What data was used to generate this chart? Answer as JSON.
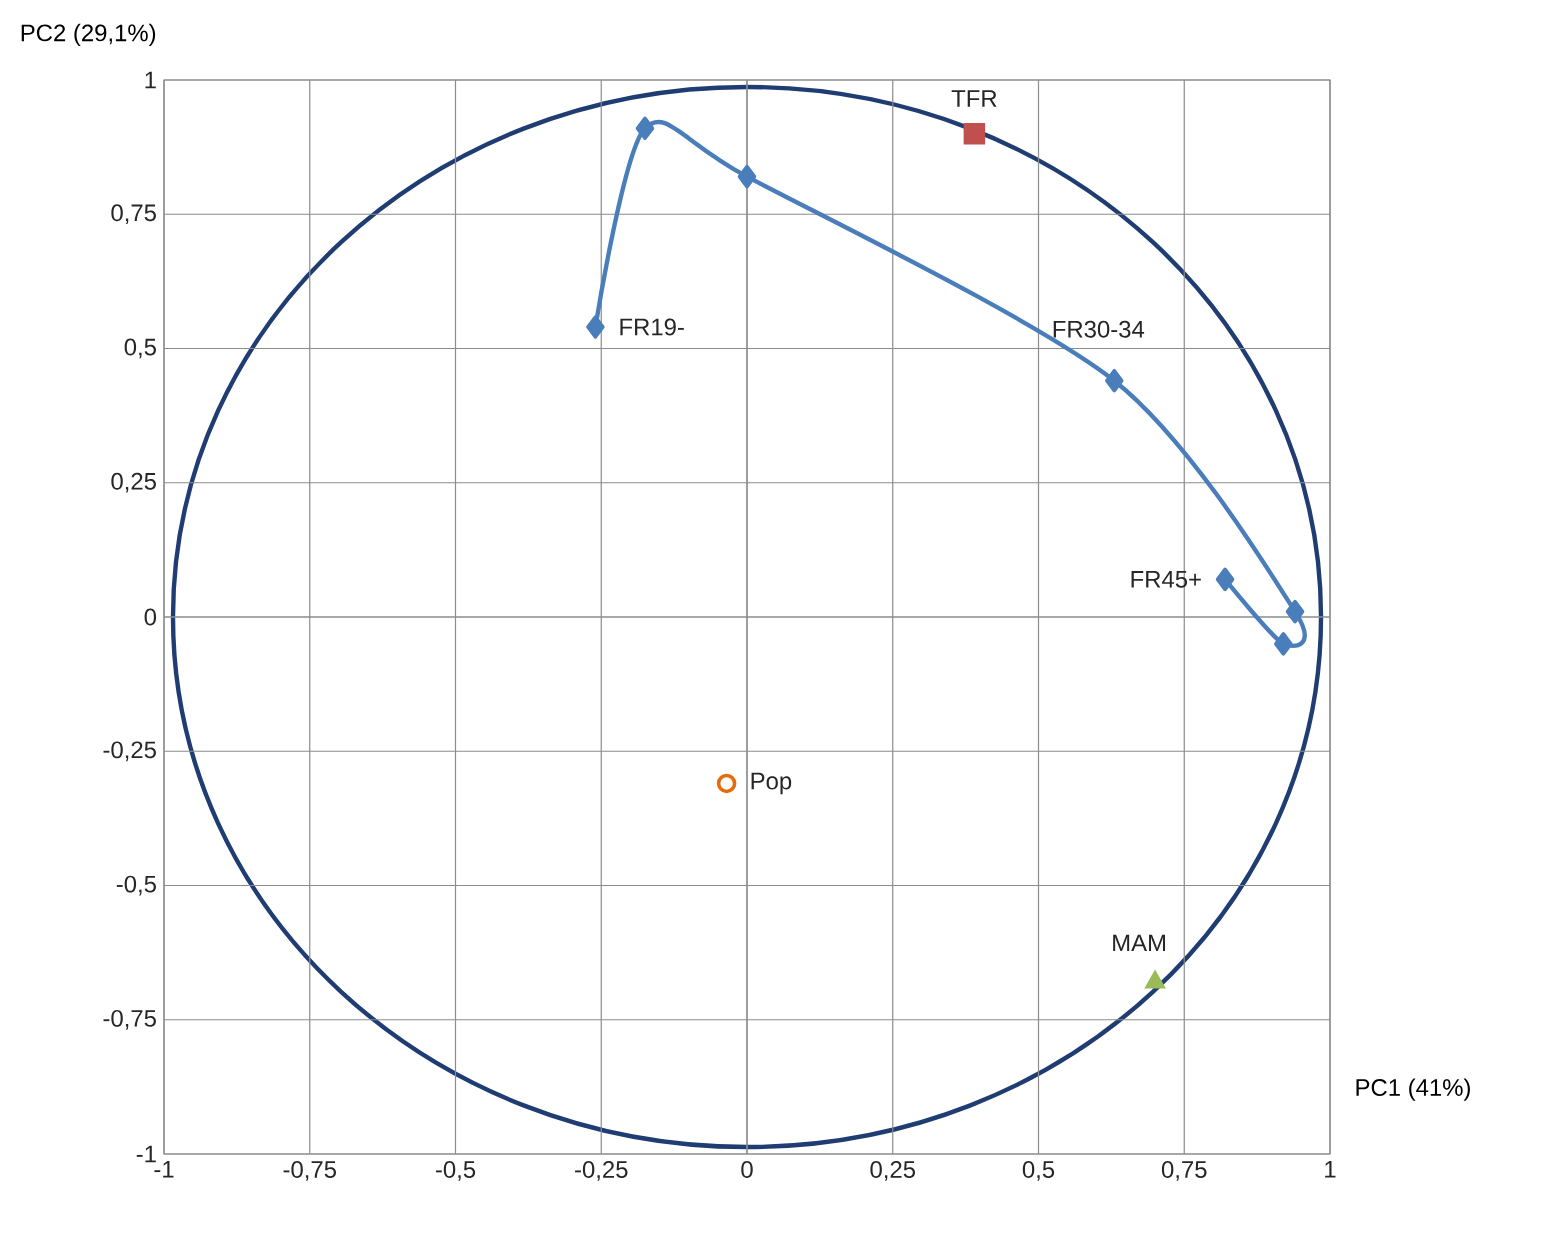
{
  "chart_data": {
    "type": "scatter",
    "xlabel": "PC1 (41%)",
    "ylabel": "PC2 (29,1%)",
    "xlim": [
      -1,
      1
    ],
    "ylim": [
      -1,
      1
    ],
    "xticks": [
      -1,
      {
        "value": -0.75,
        "label": "-0,75"
      },
      {
        "value": -0.5,
        "label": "-0,5"
      },
      {
        "value": -0.25,
        "label": "-0,25"
      },
      0,
      {
        "value": 0.25,
        "label": "0,25"
      },
      {
        "value": 0.5,
        "label": "0,5"
      },
      {
        "value": 0.75,
        "label": "0,75"
      },
      1
    ],
    "yticks": [
      -1,
      {
        "value": -0.75,
        "label": "-0,75"
      },
      {
        "value": -0.5,
        "label": "-0,5"
      },
      {
        "value": -0.25,
        "label": "-0,25"
      },
      0,
      {
        "value": 0.25,
        "label": "0,25"
      },
      {
        "value": 0.5,
        "label": "0,5"
      },
      {
        "value": 0.75,
        "label": "0,75"
      },
      1
    ],
    "grid": true,
    "series": [
      {
        "type": "line",
        "color": "#4a7ebb",
        "marker": "diamond",
        "x": [
          -0.26,
          -0.175,
          0,
          0.63,
          0.94,
          0.92,
          0.82
        ],
        "values": [
          0.54,
          0.91,
          0.82,
          0.44,
          0.01,
          -0.05,
          0.07
        ]
      },
      {
        "color": "#c0504d",
        "marker": "square",
        "x": [
          0.39
        ],
        "values": [
          0.9
        ]
      },
      {
        "color": "#e46c0a",
        "marker": "circle",
        "x": [
          -0.035
        ],
        "values": [
          -0.31
        ]
      },
      {
        "color": "#9bbb59",
        "marker": "triangle",
        "x": [
          0.7
        ],
        "values": [
          -0.68
        ]
      }
    ],
    "annotations": [
      {
        "text": "FR19-",
        "x": -0.26,
        "y": 0.54
      },
      {
        "text": "FR30-34",
        "x": 0.63,
        "y": 0.44
      },
      {
        "text": "FR45+",
        "x": 0.82,
        "y": 0.07
      },
      {
        "text": "TFR",
        "x": 0.39,
        "y": 0.9
      },
      {
        "text": "Pop",
        "x": -0.035,
        "y": -0.31
      },
      {
        "text": "MAM",
        "x": 0.7,
        "y": -0.68
      }
    ]
  }
}
